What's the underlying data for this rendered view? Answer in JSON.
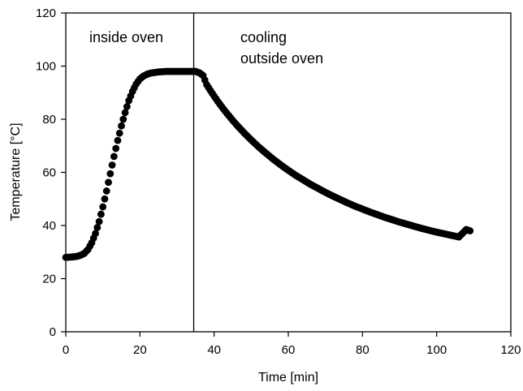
{
  "chart_data": {
    "type": "scatter",
    "xlabel": "Time [min]",
    "ylabel": "Temperature [°C]",
    "xlim": [
      0,
      120
    ],
    "ylim": [
      0,
      120
    ],
    "xticks": [
      "0",
      "20",
      "40",
      "60",
      "80",
      "100",
      "120"
    ],
    "yticks": [
      "0",
      "20",
      "40",
      "60",
      "80",
      "100",
      "120"
    ],
    "grid": false,
    "legend": "none",
    "vline_x": 34.5,
    "annotations": [
      "inside oven",
      "cooling",
      "outside oven"
    ],
    "marker_color": "#000000",
    "series": [
      {
        "x": [
          0,
          1,
          2,
          3,
          4,
          5,
          6,
          7,
          8,
          9,
          10,
          11,
          12,
          13,
          14,
          15,
          16,
          17,
          18,
          19,
          20,
          21,
          22,
          23,
          24,
          25,
          26,
          27,
          28,
          29,
          30,
          31,
          32,
          33,
          34,
          35,
          36,
          37,
          38,
          39,
          40,
          41,
          42,
          43,
          44,
          45,
          46,
          47,
          48,
          49,
          50,
          52,
          54,
          56,
          58,
          60,
          62,
          64,
          66,
          68,
          70,
          72,
          74,
          76,
          78,
          80,
          82,
          84,
          86,
          88,
          90,
          92,
          94,
          96,
          98,
          100,
          102,
          104,
          106,
          108,
          109
        ],
        "y": [
          28,
          28.1,
          28.2,
          28.4,
          28.8,
          29.5,
          31,
          33.5,
          37,
          41.5,
          47,
          53,
          59.5,
          66,
          72,
          77.5,
          82.5,
          87,
          90.5,
          93.3,
          95.2,
          96.3,
          97,
          97.4,
          97.6,
          97.8,
          97.9,
          98,
          98,
          98,
          98,
          98,
          98,
          98,
          98,
          98,
          97.5,
          96.5,
          93,
          90.8,
          88.7,
          86.7,
          84.8,
          83.0,
          81.3,
          79.6,
          78.0,
          76.5,
          75.0,
          73.6,
          72.2,
          69.6,
          67.2,
          64.9,
          62.8,
          60.8,
          58.9,
          57.2,
          55.5,
          54.0,
          52.5,
          51.1,
          49.8,
          48.5,
          47.3,
          46.2,
          45.1,
          44.1,
          43.1,
          42.2,
          41.3,
          40.5,
          39.7,
          38.9,
          38.2,
          37.5,
          36.9,
          36.3,
          35.7,
          38.5,
          38
        ]
      }
    ]
  }
}
